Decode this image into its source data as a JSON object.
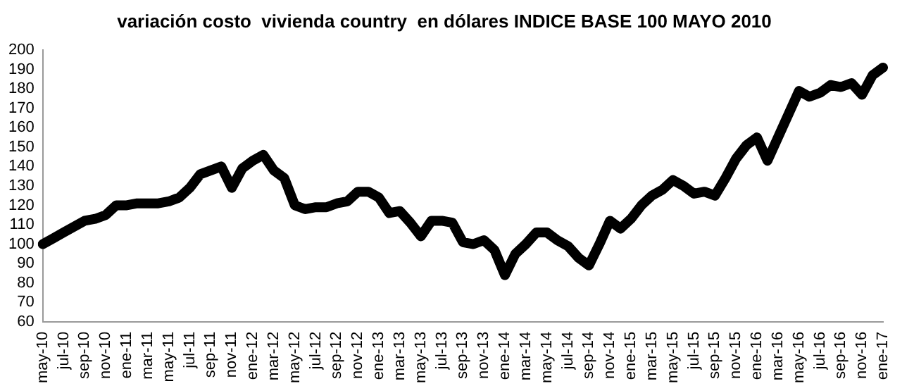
{
  "chart_data": {
    "type": "line",
    "title": "variación costo  vivienda country  en dólares INDICE BASE 100 MAYO 2010",
    "categories": [
      "may-10",
      null,
      "jul-10",
      null,
      "sep-10",
      null,
      "nov-10",
      null,
      "ene-11",
      null,
      "mar-11",
      null,
      "may-11",
      null,
      "jul-11",
      null,
      "sep-11",
      null,
      "nov-11",
      null,
      "ene-12",
      null,
      "mar-12",
      null,
      "may-12",
      null,
      "jul-12",
      null,
      "sep-12",
      null,
      "nov-12",
      null,
      "ene-13",
      null,
      "mar-13",
      null,
      "may-13",
      null,
      "jul-13",
      null,
      "sep-13",
      null,
      "nov-13",
      null,
      "ene-14",
      null,
      "mar-14",
      null,
      "may-14",
      null,
      "jul-14",
      null,
      "sep-14",
      null,
      "nov-14",
      null,
      "ene-15",
      null,
      "mar-15",
      null,
      "may-15",
      null,
      "jul-15",
      null,
      "sep-15",
      null,
      "nov-15",
      null,
      "ene-16",
      null,
      "mar-16",
      null,
      "may-16",
      null,
      "jul-16",
      null,
      "sep-16",
      null,
      "nov-16",
      null,
      "ene-17"
    ],
    "series": [
      {
        "color": "#000000",
        "values": [
          100,
          103,
          106,
          109,
          112,
          113,
          115,
          120,
          120,
          121,
          121,
          121,
          122,
          124,
          129,
          136,
          138,
          140,
          129,
          139,
          143,
          146,
          138,
          134,
          120,
          118,
          119,
          119,
          121,
          122,
          127,
          127,
          124,
          116,
          117,
          111,
          104,
          112,
          112,
          111,
          101,
          100,
          102,
          97,
          84,
          95,
          100,
          106,
          106,
          102,
          99,
          93,
          89,
          100,
          112,
          108,
          113,
          120,
          125,
          128,
          133,
          130,
          126,
          127,
          125,
          134,
          144,
          151,
          155,
          143,
          155,
          167,
          179,
          176,
          178,
          182,
          181,
          183,
          177,
          187,
          191
        ]
      }
    ],
    "ylim": [
      60,
      200
    ],
    "yticks": [
      60,
      70,
      80,
      90,
      100,
      110,
      120,
      130,
      140,
      150,
      160,
      170,
      180,
      190,
      200
    ],
    "grid": false,
    "legend": false,
    "marker": "none",
    "line_style": "solid"
  }
}
